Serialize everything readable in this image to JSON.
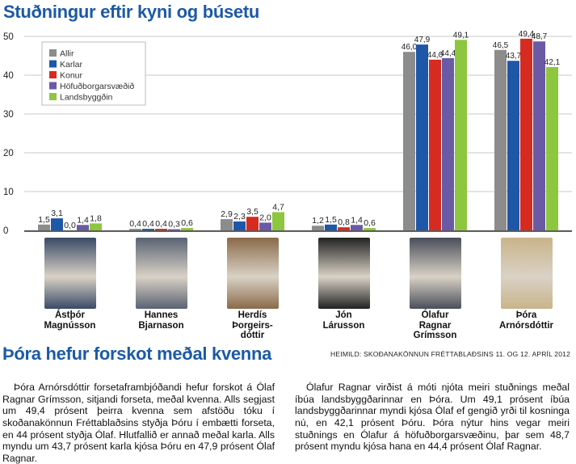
{
  "colors": {
    "title_blue": "#1c5aa6",
    "series": [
      "#8c8c8c",
      "#1f57a8",
      "#d62b20",
      "#6a5aa6",
      "#8dc63f"
    ]
  },
  "chart_data": {
    "type": "bar",
    "title": "Stuðningur eftir kyni og búsetu",
    "ylabel": "%",
    "ylim": [
      0,
      50
    ],
    "yticks": [
      "0",
      "10",
      "20",
      "30",
      "40",
      "50"
    ],
    "grid": true,
    "legend_position": "top-left",
    "categories": [
      "Ástþór Magnússon",
      "Hannes Bjarnason",
      "Herdís Þorgeirsdóttir",
      "Jón Lárusson",
      "Ólafur Ragnar Grímsson",
      "Þóra Arnórsdóttir"
    ],
    "series": [
      {
        "name": "Allir",
        "values": [
          1.5,
          0.4,
          2.9,
          1.2,
          46.0,
          46.5
        ],
        "labels": [
          "1,5",
          "0,4",
          "2,9",
          "1,2",
          "46,0",
          "46,5"
        ]
      },
      {
        "name": "Karlar",
        "values": [
          3.1,
          0.4,
          2.3,
          1.5,
          47.9,
          43.7
        ],
        "labels": [
          "3,1",
          "0,4",
          "2,3",
          "1,5",
          "47,9",
          "43,7"
        ]
      },
      {
        "name": "Konur",
        "values": [
          0.0,
          0.4,
          3.5,
          0.8,
          44.0,
          49.4
        ],
        "labels": [
          "0,0",
          "0,4",
          "3,5",
          "0,8",
          "44,0",
          "49,4"
        ]
      },
      {
        "name": "Höfuðborgarsvæðið",
        "values": [
          1.4,
          0.3,
          2.0,
          1.4,
          44.4,
          48.7
        ],
        "labels": [
          "1,4",
          "0,3",
          "2,0",
          "1,4",
          "44,4",
          "48,7"
        ]
      },
      {
        "name": "Landsbyggðin",
        "values": [
          1.8,
          0.6,
          4.7,
          0.6,
          49.1,
          42.1
        ],
        "labels": [
          "1,8",
          "0,6",
          "4,7",
          "0,6",
          "49,1",
          "42,1"
        ]
      }
    ]
  },
  "candidates": [
    {
      "name": "Ástþór Magnússon",
      "line1": "Ástþór",
      "line2": "Magnússon",
      "line3": "",
      "photo_color": "#3a4a66"
    },
    {
      "name": "Hannes Bjarnason",
      "line1": "Hannes",
      "line2": "Bjarnason",
      "line3": "",
      "photo_color": "#5a6272"
    },
    {
      "name": "Herdís Þorgeirsdóttir",
      "line1": "Herdís",
      "line2": "Þorgeirs-",
      "line3": "dóttir",
      "photo_color": "#8a6a4a"
    },
    {
      "name": "Jón Lárusson",
      "line1": "Jón",
      "line2": "Lárusson",
      "line3": "",
      "photo_color": "#222222"
    },
    {
      "name": "Ólafur Ragnar Grímsson",
      "line1": "Ólafur",
      "line2": "Ragnar",
      "line3": "Grímsson",
      "photo_color": "#4a4e5a"
    },
    {
      "name": "Þóra Arnórsdóttir",
      "line1": "Þóra",
      "line2": "Arnórsdóttir",
      "line3": "",
      "photo_color": "#c9b48a"
    }
  ],
  "article": {
    "title": "Þóra hefur forskot meðal kvenna",
    "source": "HEIMILD: SKOÐANAKÖNNUN FRÉTTABLAÐSINS 11. OG 12. APRÍL 2012",
    "col1": "Þóra Arnórsdóttir forsetaframbjóðandi hefur forskot á Ólaf Ragnar Grímsson, sitjandi forseta, meðal kvenna. Alls segjast um 49,4 prósent þeirra kvenna sem afstöðu tóku í skoðanakönnun Fréttablaðsins styðja Þóru í embætti forseta, en 44 prósent styðja Ólaf. Hlutfallið er annað meðal karla. Alls myndu um 43,7 prósent karla kjósa Þóru en 47,9 prósent Ólaf Ragnar.",
    "col2": "Ólafur Ragnar virðist á móti njóta meiri stuðnings meðal íbúa landsbyggðarinnar en Þóra. Um 49,1 prósent íbúa landsbyggðarinnar myndi kjósa Ólaf ef gengið yrði til kosninga nú, en 42,1 prósent Þóru. Þóra nýtur hins vegar meiri stuðnings en Ólafur á höfuðborgarsvæðinu, þar sem 48,7 prósent myndu kjósa hana en 44,4 prósent Ólaf Ragnar."
  }
}
